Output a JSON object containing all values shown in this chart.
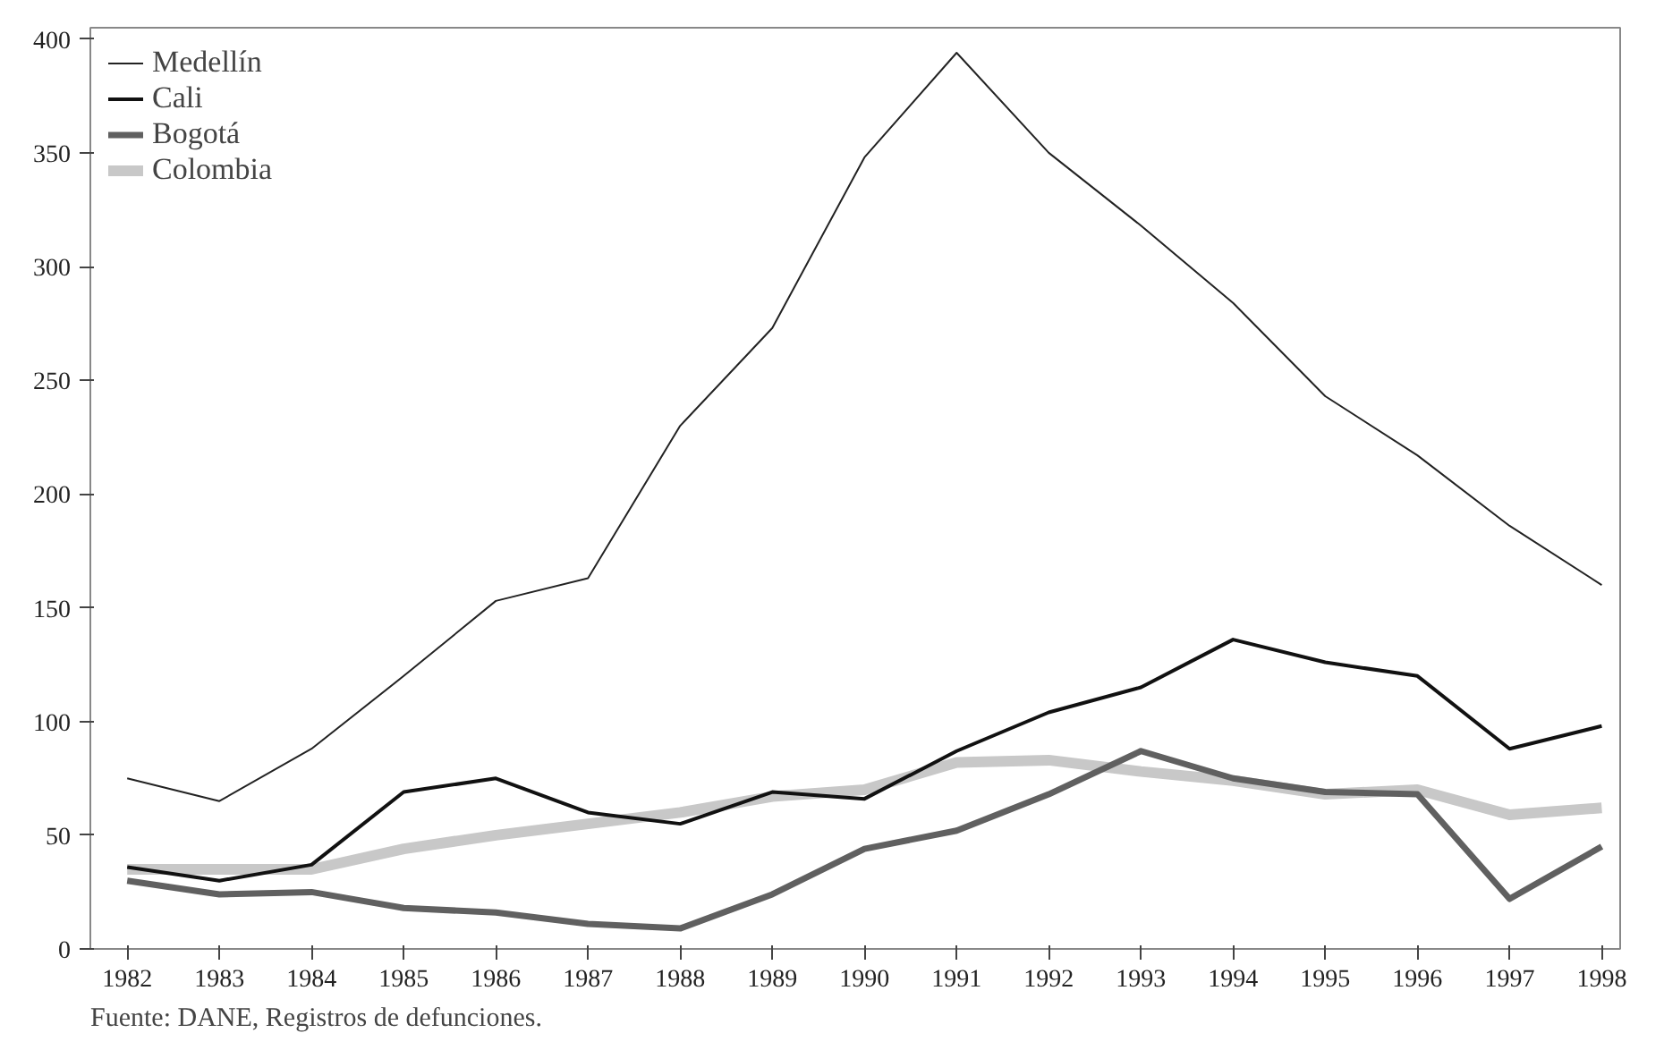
{
  "chart_data": {
    "type": "line",
    "x": [
      1982,
      1983,
      1984,
      1985,
      1986,
      1987,
      1988,
      1989,
      1990,
      1991,
      1992,
      1993,
      1994,
      1995,
      1996,
      1997,
      1998
    ],
    "series": [
      {
        "name": "Medellín",
        "color": "#222222",
        "values": [
          75,
          65,
          88,
          120,
          153,
          163,
          230,
          273,
          348,
          394,
          350,
          318,
          284,
          243,
          217,
          186,
          160
        ]
      },
      {
        "name": "Cali",
        "color": "#111111",
        "values": [
          36,
          30,
          37,
          69,
          75,
          60,
          55,
          69,
          66,
          87,
          104,
          115,
          136,
          126,
          120,
          88,
          98
        ]
      },
      {
        "name": "Bogotá",
        "color": "#606060",
        "values": [
          30,
          24,
          25,
          18,
          16,
          11,
          9,
          24,
          44,
          52,
          68,
          87,
          75,
          69,
          68,
          22,
          45
        ]
      },
      {
        "name": "Colombia",
        "color": "#c8c8c8",
        "values": [
          35,
          35,
          35,
          44,
          50,
          55,
          60,
          67,
          70,
          82,
          83,
          78,
          74,
          68,
          70,
          59,
          62
        ]
      }
    ],
    "xlim": [
      1981.6,
      1998.2
    ],
    "xticks": [
      1982,
      1983,
      1984,
      1985,
      1986,
      1987,
      1988,
      1989,
      1990,
      1991,
      1992,
      1993,
      1994,
      1995,
      1996,
      1997,
      1998
    ],
    "ylim": [
      0,
      405
    ],
    "yticks": [
      0,
      50,
      100,
      150,
      200,
      250,
      300,
      350,
      400
    ],
    "grid": false,
    "legend": "top left",
    "marker": "none",
    "line_style": "solid",
    "annotations": [
      "Fuente: DANE, Registros de defunciones."
    ]
  }
}
